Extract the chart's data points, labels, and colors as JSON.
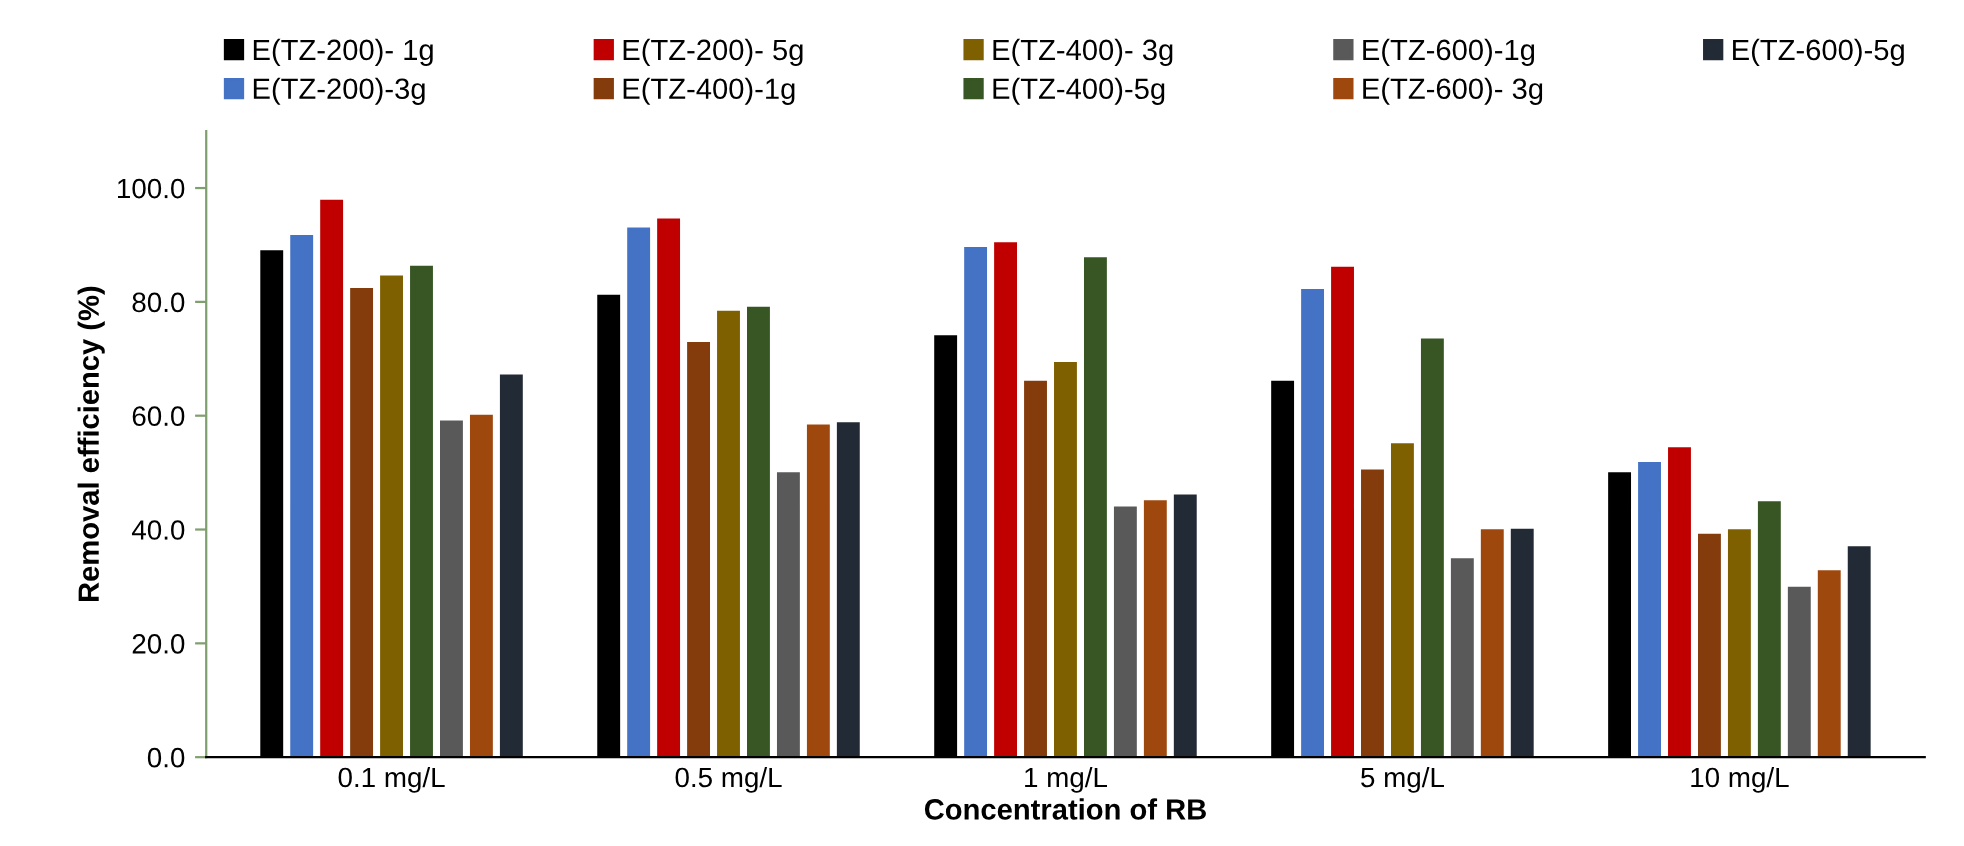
{
  "chart_data": {
    "type": "bar",
    "xlabel": "Concentration of RB",
    "ylabel": "Removal efficiency (%)",
    "categories": [
      "0.1 mg/L",
      "0.5 mg/L",
      "1 mg/L",
      "5 mg/L",
      "10 mg/L"
    ],
    "series": [
      {
        "name": "E(TZ-200)- 1g",
        "color": "#000000",
        "values": [
          89.2,
          81.4,
          74.3,
          66.3,
          50.2
        ]
      },
      {
        "name": "E(TZ-200)-3g",
        "color": "#4472c4",
        "values": [
          91.9,
          93.2,
          89.8,
          82.4,
          52.0
        ]
      },
      {
        "name": "E(TZ-200)- 5g",
        "color": "#c00000",
        "values": [
          98.1,
          94.8,
          90.6,
          86.3,
          54.6
        ]
      },
      {
        "name": "E(TZ-400)-1g",
        "color": "#843c0c",
        "values": [
          82.6,
          73.1,
          66.3,
          50.7,
          39.4
        ]
      },
      {
        "name": "E(TZ-400)- 3g",
        "color": "#7f6000",
        "values": [
          84.8,
          78.6,
          69.6,
          55.3,
          40.2
        ]
      },
      {
        "name": "E(TZ-400)-5g",
        "color": "#375623",
        "values": [
          86.5,
          79.3,
          88.0,
          73.7,
          45.1
        ]
      },
      {
        "name": "E(TZ-600)-1g",
        "color": "#595959",
        "values": [
          59.3,
          50.2,
          44.2,
          35.1,
          30.1
        ]
      },
      {
        "name": "E(TZ-600)- 3g",
        "color": "#9e480e",
        "values": [
          60.3,
          58.6,
          45.3,
          40.2,
          33.0
        ]
      },
      {
        "name": "E(TZ-600)-5g",
        "color": "#222a35",
        "values": [
          67.4,
          59.0,
          46.3,
          40.3,
          37.2
        ]
      }
    ],
    "ylim": [
      0,
      110
    ],
    "yticks": [
      {
        "value": 0,
        "label": "0.0"
      },
      {
        "value": 20,
        "label": "20.0"
      },
      {
        "value": 40,
        "label": "40.0"
      },
      {
        "value": 60,
        "label": "60.0"
      },
      {
        "value": 80,
        "label": "80.0"
      },
      {
        "value": 100,
        "label": "100.0"
      }
    ],
    "grid": false,
    "legend": "top"
  }
}
